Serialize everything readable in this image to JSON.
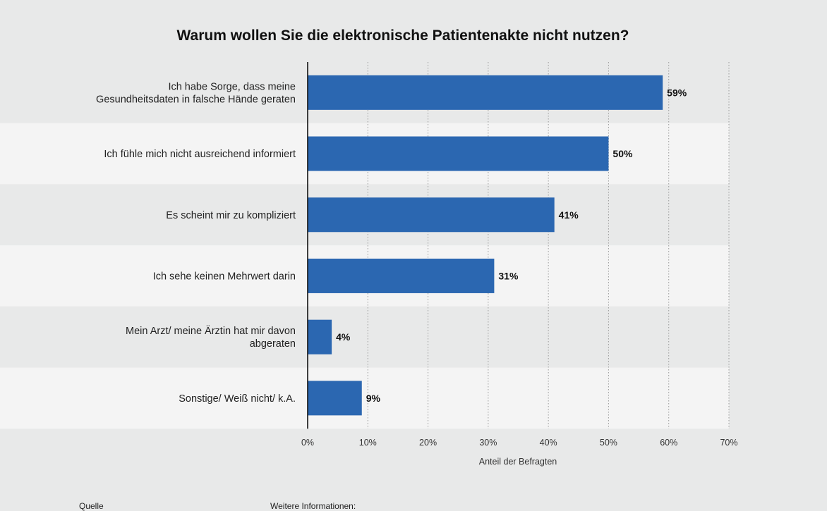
{
  "chart_data": {
    "type": "bar",
    "orientation": "horizontal",
    "title": "Warum wollen Sie die elektronische Patientenakte nicht nutzen?",
    "categories": [
      [
        "Ich habe Sorge, dass meine",
        "Gesundheitsdaten in falsche Hände geraten"
      ],
      [
        "Ich fühle mich nicht ausreichend informiert"
      ],
      [
        "Es scheint mir zu kompliziert"
      ],
      [
        "Ich sehe keinen Mehrwert darin"
      ],
      [
        "Mein Arzt/ meine Ärztin hat mir davon",
        "abgeraten"
      ],
      [
        "Sonstige/ Weiß nicht/ k.A."
      ]
    ],
    "values": [
      59,
      50,
      41,
      31,
      4,
      9
    ],
    "value_labels": [
      "59%",
      "50%",
      "41%",
      "31%",
      "4%",
      "9%"
    ],
    "xlim": [
      0,
      70
    ],
    "ticks": [
      0,
      10,
      20,
      30,
      40,
      50,
      60,
      70
    ],
    "tick_labels": [
      "0%",
      "10%",
      "20%",
      "30%",
      "40%",
      "50%",
      "60%",
      "70%"
    ],
    "xlabel": "Anteil der Befragten",
    "ylabel": "",
    "grid": true,
    "bar_color": "#2b67b1",
    "band_colors": [
      "#e8e9e9",
      "#f4f4f4"
    ]
  },
  "footer": {
    "source_label": "Quelle",
    "info_label": "Weitere Informationen:"
  }
}
